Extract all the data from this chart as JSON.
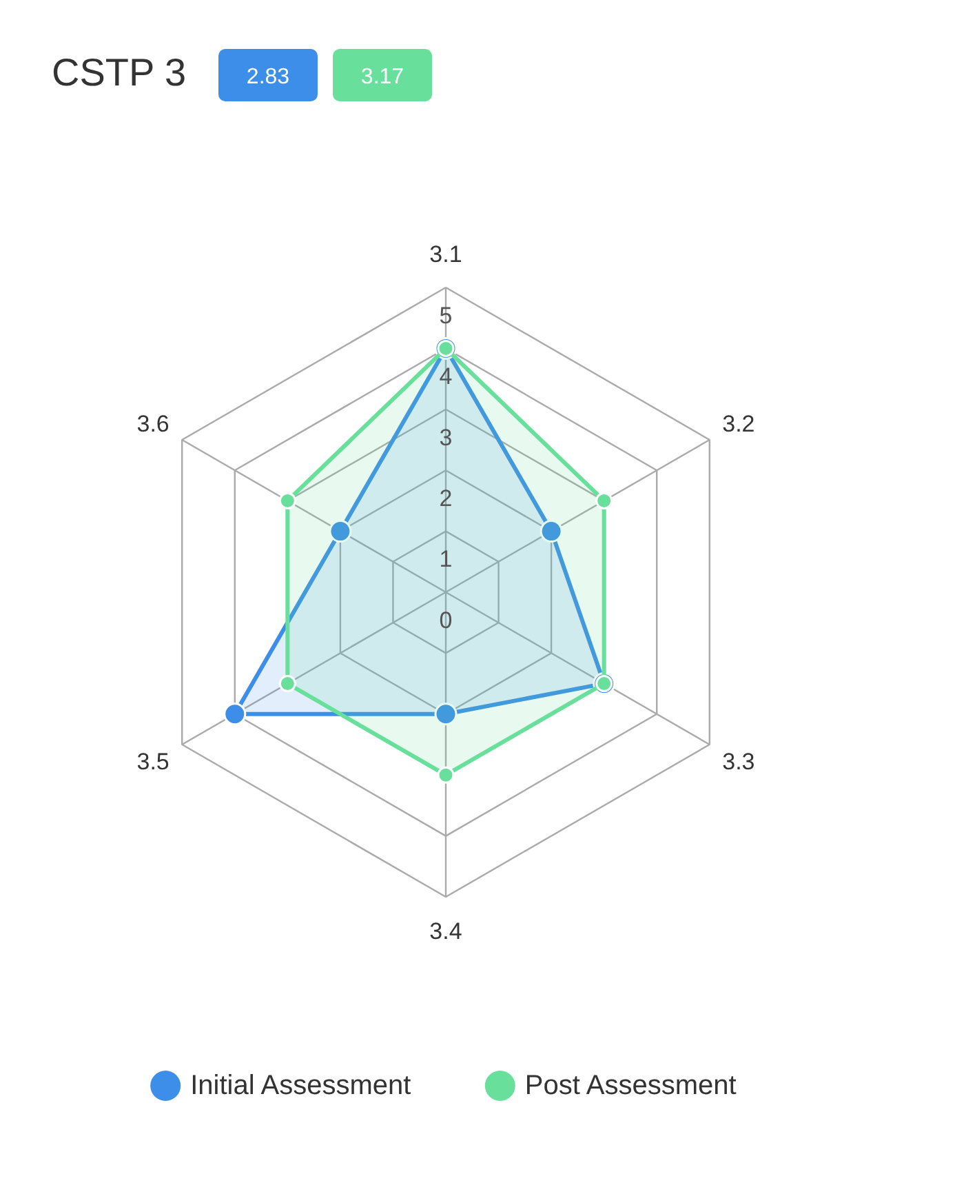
{
  "chart_data": {
    "type": "radar",
    "title": "CSTP 3",
    "annotations": [
      "2.83",
      "3.17"
    ],
    "categories": [
      "3.1",
      "3.2",
      "3.3",
      "3.4",
      "3.5",
      "3.6"
    ],
    "series": [
      {
        "name": "Initial Assessment",
        "color": "#3d8ee8",
        "values": [
          4,
          2,
          3,
          2,
          4,
          2
        ]
      },
      {
        "name": "Post Assessment",
        "color": "#68e09c",
        "values": [
          4,
          3,
          3,
          3,
          3,
          3
        ]
      }
    ],
    "ylim": [
      0,
      5
    ],
    "yticks": [
      0,
      1,
      2,
      3,
      4,
      5
    ],
    "grid": true,
    "legend": "bottom",
    "marker": "circle",
    "line_style": "solid"
  }
}
